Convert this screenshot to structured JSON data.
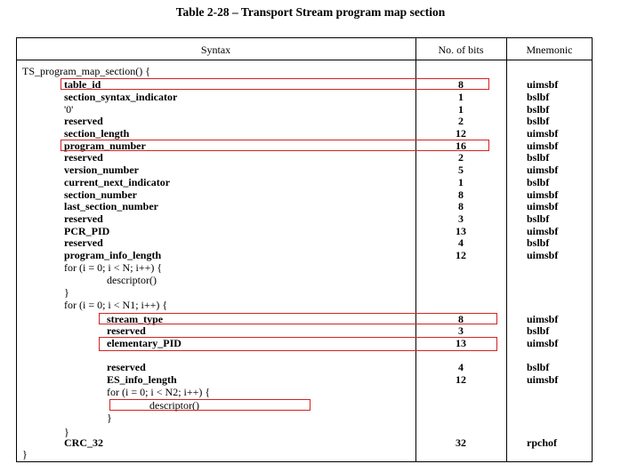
{
  "title": "Table 2-28 – Transport Stream program map section",
  "headers": {
    "syntax": "Syntax",
    "bits": "No. of bits",
    "mnemonic": "Mnemonic"
  },
  "rows": [
    {
      "syntax": "TS_program_map_section() {",
      "bits": "",
      "mnemonic": ""
    },
    {
      "syntax": "table_id",
      "bits": "8",
      "mnemonic": "uimsbf"
    },
    {
      "syntax": "section_syntax_indicator",
      "bits": "1",
      "mnemonic": "bslbf"
    },
    {
      "syntax": "'0'",
      "bits": "1",
      "mnemonic": "bslbf"
    },
    {
      "syntax": "reserved",
      "bits": "2",
      "mnemonic": "bslbf"
    },
    {
      "syntax": "section_length",
      "bits": "12",
      "mnemonic": "uimsbf"
    },
    {
      "syntax": "program_number",
      "bits": "16",
      "mnemonic": "uimsbf"
    },
    {
      "syntax": "reserved",
      "bits": "2",
      "mnemonic": "bslbf"
    },
    {
      "syntax": "version_number",
      "bits": "5",
      "mnemonic": "uimsbf"
    },
    {
      "syntax": "current_next_indicator",
      "bits": "1",
      "mnemonic": "bslbf"
    },
    {
      "syntax": "section_number",
      "bits": "8",
      "mnemonic": "uimsbf"
    },
    {
      "syntax": "last_section_number",
      "bits": "8",
      "mnemonic": "uimsbf"
    },
    {
      "syntax": "reserved",
      "bits": "3",
      "mnemonic": "bslbf"
    },
    {
      "syntax": "PCR_PID",
      "bits": "13",
      "mnemonic": "uimsbf"
    },
    {
      "syntax": "reserved",
      "bits": "4",
      "mnemonic": "bslbf"
    },
    {
      "syntax": "program_info_length",
      "bits": "12",
      "mnemonic": "uimsbf"
    },
    {
      "syntax": "for (i = 0; i < N; i++) {",
      "bits": "",
      "mnemonic": ""
    },
    {
      "syntax": "descriptor()",
      "bits": "",
      "mnemonic": ""
    },
    {
      "syntax": "}",
      "bits": "",
      "mnemonic": ""
    },
    {
      "syntax": "for (i = 0; i < N1; i++) {",
      "bits": "",
      "mnemonic": ""
    },
    {
      "syntax": "stream_type",
      "bits": "8",
      "mnemonic": "uimsbf"
    },
    {
      "syntax": "reserved",
      "bits": "3",
      "mnemonic": "bslbf"
    },
    {
      "syntax": "elementary_PID",
      "bits": "13",
      "mnemonic": "uimsbf"
    },
    {
      "syntax": "reserved",
      "bits": "4",
      "mnemonic": "bslbf"
    },
    {
      "syntax": "ES_info_length",
      "bits": "12",
      "mnemonic": "uimsbf"
    },
    {
      "syntax": "for (i = 0; i < N2; i++) {",
      "bits": "",
      "mnemonic": ""
    },
    {
      "syntax": "descriptor()",
      "bits": "",
      "mnemonic": ""
    },
    {
      "syntax": "}",
      "bits": "",
      "mnemonic": ""
    },
    {
      "syntax": "}",
      "bits": "",
      "mnemonic": ""
    },
    {
      "syntax": "CRC_32",
      "bits": "32",
      "mnemonic": "rpchof"
    },
    {
      "syntax": "}",
      "bits": "",
      "mnemonic": ""
    }
  ],
  "highlight_color": "#d22222"
}
